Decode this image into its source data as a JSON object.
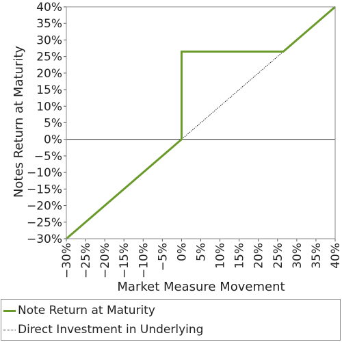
{
  "chart_data": {
    "type": "line",
    "xlabel": "Market Measure Movement",
    "ylabel": "Notes Return at Maturity",
    "xlim": [
      -30,
      40
    ],
    "ylim": [
      -30,
      40
    ],
    "x_ticks": [
      "-30%",
      "-25%",
      "-20%",
      "-15%",
      "-10%",
      "-5%",
      "0%",
      "5%",
      "10%",
      "15%",
      "20%",
      "25%",
      "30%",
      "35%",
      "40%"
    ],
    "y_ticks": [
      "-30%",
      "-25%",
      "-20%",
      "-15%",
      "-10%",
      "-5%",
      "0%",
      "5%",
      "10%",
      "15%",
      "20%",
      "25%",
      "30%",
      "35%",
      "40%"
    ],
    "grid": false,
    "legend_position": "bottom",
    "series": [
      {
        "name": "Note Return at Maturity",
        "color": "#6a9a2a",
        "style": "solid",
        "x": [
          -30,
          0,
          0,
          26.5,
          40
        ],
        "y": [
          -30,
          0,
          26.5,
          26.5,
          40
        ]
      },
      {
        "name": "Direct Investment in Underlying",
        "color": "#222222",
        "style": "dotted",
        "x": [
          0,
          26.5
        ],
        "y": [
          0,
          26.5
        ]
      }
    ]
  }
}
